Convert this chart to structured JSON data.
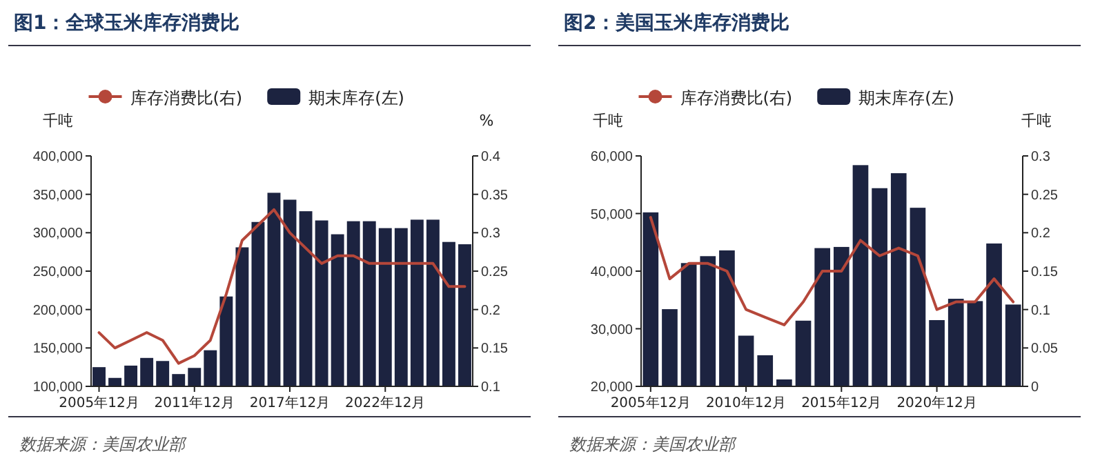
{
  "chart_data": [
    {
      "type": "bar",
      "title": "图1：全球玉米库存消费比",
      "ylabel": "千吨",
      "y2label": "%",
      "legend": "top",
      "grid": false,
      "categories": [
        "2005年12月",
        null,
        null,
        null,
        null,
        null,
        "2011年12月",
        null,
        null,
        null,
        null,
        null,
        "2017年12月",
        null,
        null,
        null,
        null,
        null,
        "2022年12月",
        null,
        null,
        null,
        null,
        null
      ],
      "series": [
        {
          "name": "库存消费比(右)",
          "type": "line",
          "axis": "y2",
          "color": "#b5473a",
          "values": [
            0.17,
            0.15,
            0.16,
            0.17,
            0.16,
            0.13,
            0.14,
            0.16,
            0.22,
            0.29,
            0.31,
            0.33,
            0.3,
            0.28,
            0.26,
            0.27,
            0.27,
            0.26,
            0.26,
            0.26,
            0.26,
            0.26,
            0.23,
            0.23
          ]
        },
        {
          "name": "期末库存(左)",
          "color": "#1c2340",
          "values": [
            125000,
            111000,
            127000,
            137000,
            133000,
            116000,
            124000,
            147000,
            217000,
            281000,
            314000,
            352000,
            343000,
            328000,
            316000,
            298000,
            315000,
            315000,
            306000,
            306000,
            317000,
            317000,
            288000,
            285000
          ]
        }
      ],
      "ylim": [
        100000,
        400000
      ],
      "yticks": [
        {
          "value": 100000,
          "label": "100,000"
        },
        {
          "value": 150000,
          "label": "150,000"
        },
        {
          "value": 200000,
          "label": "200,000"
        },
        {
          "value": 250000,
          "label": "250,000"
        },
        {
          "value": 300000,
          "label": "300,000"
        },
        {
          "value": 350000,
          "label": "350,000"
        },
        {
          "value": 400000,
          "label": "400,000"
        }
      ],
      "y2lim": [
        0.1,
        0.4
      ],
      "y2ticks": [
        {
          "value": 0.1,
          "label": "0.1"
        },
        {
          "value": 0.15,
          "label": "0.15"
        },
        {
          "value": 0.2,
          "label": "0.2"
        },
        {
          "value": 0.25,
          "label": "0.25"
        },
        {
          "value": 0.3,
          "label": "0.3"
        },
        {
          "value": 0.35,
          "label": "0.35"
        },
        {
          "value": 0.4,
          "label": "0.4"
        }
      ],
      "annotations": [
        "数据来源：美国农业部"
      ]
    },
    {
      "type": "bar",
      "title": "图2：美国玉米库存消费比",
      "ylabel": "千吨",
      "y2label": "千吨",
      "legend": "top",
      "grid": false,
      "categories": [
        "2005年12月",
        null,
        null,
        null,
        null,
        "2010年12月",
        null,
        null,
        null,
        null,
        "2015年12月",
        null,
        null,
        null,
        null,
        "2020年12月",
        null,
        null,
        null,
        null
      ],
      "series": [
        {
          "name": "库存消费比(右)",
          "type": "line",
          "axis": "y2",
          "color": "#b5473a",
          "values": [
            0.22,
            0.14,
            0.16,
            0.16,
            0.15,
            0.1,
            0.09,
            0.08,
            0.11,
            0.15,
            0.15,
            0.19,
            0.17,
            0.18,
            0.17,
            0.1,
            0.11,
            0.11,
            0.14,
            0.11
          ]
        },
        {
          "name": "期末库存(左)",
          "color": "#1c2340",
          "values": [
            50200,
            33400,
            41400,
            42600,
            43600,
            28800,
            25400,
            21200,
            31400,
            44000,
            44200,
            58400,
            54400,
            57000,
            51000,
            31500,
            35200,
            34800,
            44800,
            34200
          ]
        }
      ],
      "ylim": [
        20000,
        60000
      ],
      "yticks": [
        {
          "value": 20000,
          "label": "20,000"
        },
        {
          "value": 30000,
          "label": "30,000"
        },
        {
          "value": 40000,
          "label": "40,000"
        },
        {
          "value": 50000,
          "label": "50,000"
        },
        {
          "value": 60000,
          "label": "60,000"
        }
      ],
      "y2lim": [
        0,
        0.3
      ],
      "y2ticks": [
        {
          "value": 0,
          "label": "0"
        },
        {
          "value": 0.05,
          "label": "0.05"
        },
        {
          "value": 0.1,
          "label": "0.1"
        },
        {
          "value": 0.15,
          "label": "0.15"
        },
        {
          "value": 0.2,
          "label": "0.2"
        },
        {
          "value": 0.25,
          "label": "0.25"
        },
        {
          "value": 0.3,
          "label": "0.3"
        }
      ],
      "annotations": [
        "数据来源：美国农业部"
      ]
    }
  ]
}
